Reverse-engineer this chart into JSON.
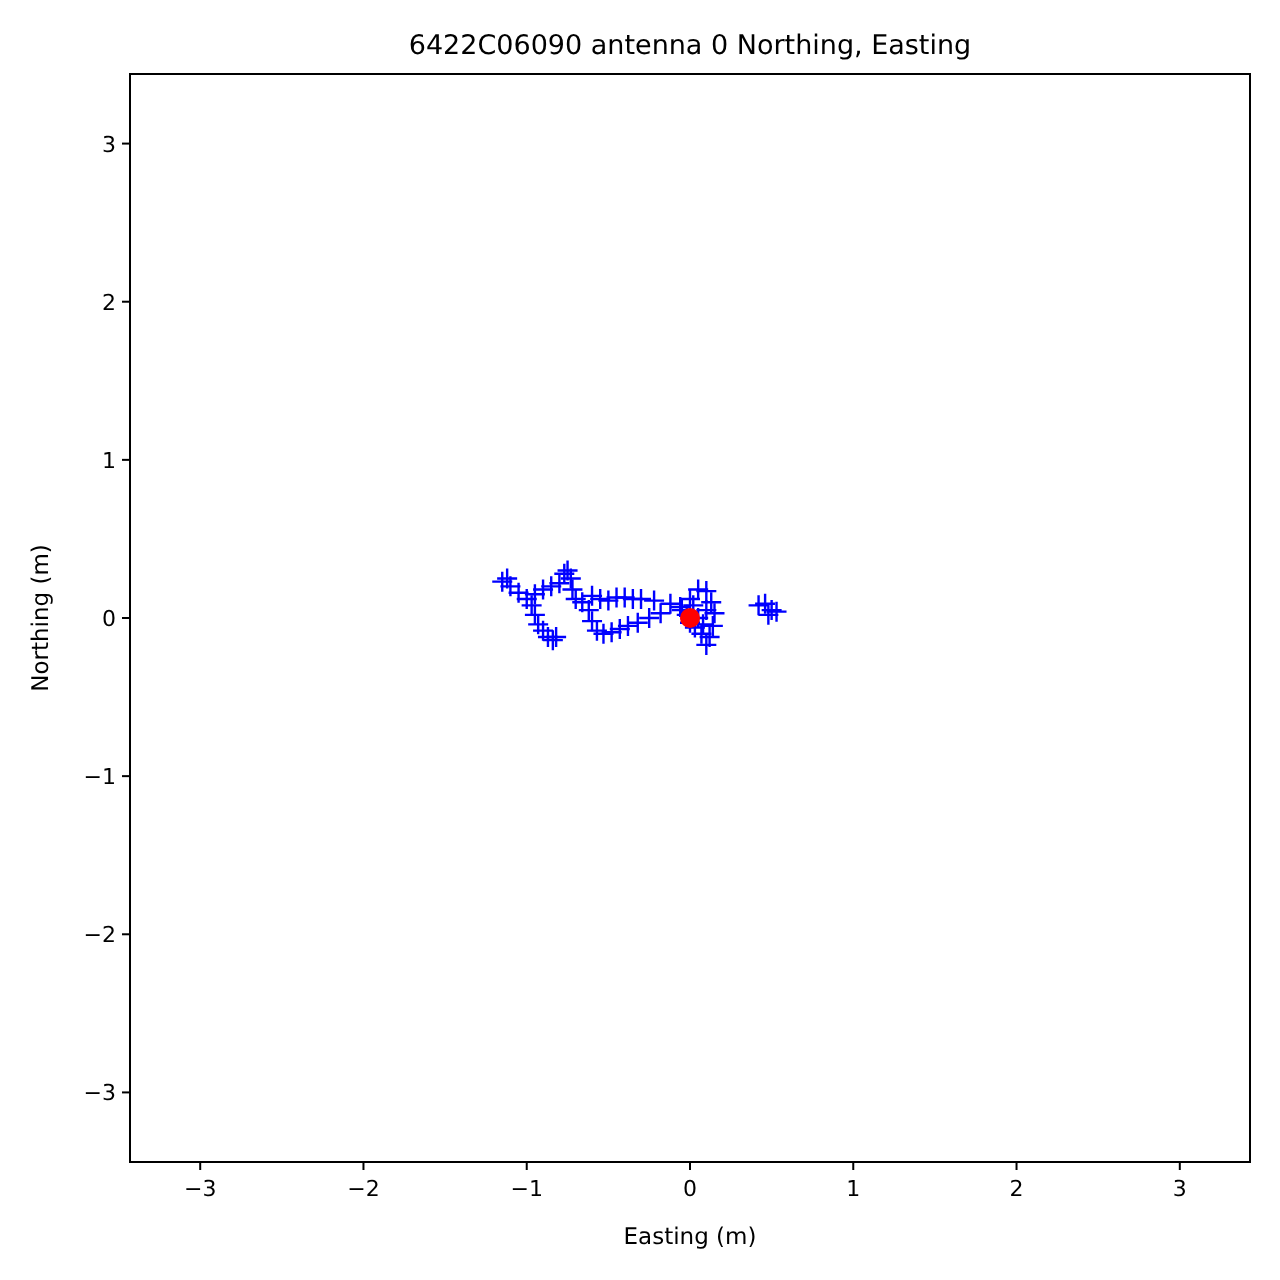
{
  "chart_data": {
    "type": "scatter",
    "title": "6422C06090 antenna 0 Northing, Easting",
    "xlabel": "Easting (m)",
    "ylabel": "Northing (m)",
    "xlim": [
      -3.43,
      3.43
    ],
    "ylim": [
      -3.44,
      3.44
    ],
    "xticks": [
      -3,
      -2,
      -1,
      0,
      1,
      2,
      3
    ],
    "yticks": [
      -3,
      -2,
      -1,
      0,
      1,
      2,
      3
    ],
    "grid": false,
    "series": [
      {
        "color": "#0000ff",
        "marker": "cross",
        "x": [
          -1.15,
          -1.12,
          -1.1,
          -1.05,
          -1.0,
          -0.97,
          -0.95,
          -0.93,
          -0.9,
          -0.87,
          -0.84,
          -0.82,
          -0.95,
          -0.9,
          -0.85,
          -0.8,
          -0.77,
          -0.75,
          -0.73,
          -0.72,
          -0.7,
          -0.66,
          -0.6,
          -0.55,
          -0.5,
          -0.45,
          -0.4,
          -0.35,
          -0.3,
          -0.22,
          -0.12,
          -0.06,
          -0.62,
          -0.6,
          -0.57,
          -0.53,
          -0.48,
          -0.43,
          -0.38,
          -0.32,
          -0.25,
          -0.18,
          -0.05,
          0.0,
          0.05,
          0.1,
          0.13,
          0.15,
          0.14,
          0.12,
          0.1,
          0.07,
          0.03,
          0.0,
          -0.02,
          0.05,
          0.1,
          0.08,
          0.02,
          0.42,
          0.46,
          0.5,
          0.53,
          0.48
        ],
        "values": [
          0.23,
          0.25,
          0.2,
          0.16,
          0.12,
          0.08,
          0.02,
          -0.04,
          -0.08,
          -0.12,
          -0.14,
          -0.12,
          0.15,
          0.18,
          0.2,
          0.22,
          0.28,
          0.3,
          0.25,
          0.18,
          0.12,
          0.1,
          0.14,
          0.12,
          0.11,
          0.13,
          0.13,
          0.12,
          0.12,
          0.11,
          0.09,
          0.07,
          0.05,
          -0.02,
          -0.08,
          -0.1,
          -0.09,
          -0.07,
          -0.05,
          -0.03,
          0.0,
          0.03,
          0.05,
          0.12,
          0.18,
          0.17,
          0.1,
          0.03,
          -0.05,
          -0.12,
          -0.17,
          -0.1,
          -0.06,
          -0.03,
          0.02,
          0.0,
          0.05,
          -0.04,
          0.08,
          0.08,
          0.09,
          0.05,
          0.04,
          0.02
        ]
      },
      {
        "color": "#ff0000",
        "marker": "circle",
        "x": [
          0
        ],
        "values": [
          0
        ]
      }
    ]
  }
}
